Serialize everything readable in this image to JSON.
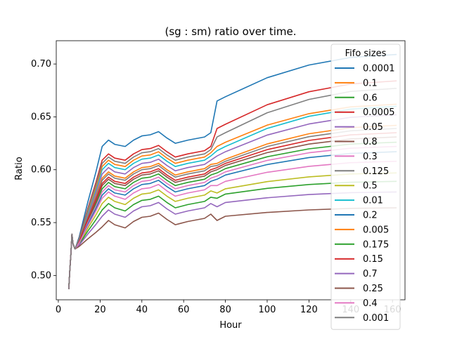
{
  "chart_data": {
    "type": "line",
    "title": "(sg : sm) ratio over time.",
    "xlabel": "Hour",
    "ylabel": "Ratio",
    "xlim": [
      -1,
      166
    ],
    "ylim": [
      0.477,
      0.722
    ],
    "x_ticks": [
      0,
      20,
      40,
      60,
      80,
      100,
      120,
      140,
      160
    ],
    "y_ticks": [
      0.5,
      0.55,
      0.6,
      0.65,
      0.7
    ],
    "y_tick_labels": [
      "0.50",
      "0.55",
      "0.60",
      "0.65",
      "0.70"
    ],
    "grid": false,
    "legend": {
      "title": "Fifo sizes",
      "placement": "right"
    },
    "series": [
      {
        "name": "0.0001",
        "color": "#1f77b4",
        "end": 0.709,
        "plateau": 0.669,
        "peak": 0.628,
        "dip": 0.622
      },
      {
        "name": "0.1",
        "color": "#ff7f0e",
        "end": 0.642,
        "plateau": 0.61,
        "peak": 0.598,
        "dip": 0.592
      },
      {
        "name": "0.6",
        "color": "#2ca02c",
        "end": 0.626,
        "plateau": 0.601,
        "peak": 0.588,
        "dip": 0.582
      },
      {
        "name": "0.0005",
        "color": "#d62728",
        "end": 0.684,
        "plateau": 0.643,
        "peak": 0.615,
        "dip": 0.609
      },
      {
        "name": "0.05",
        "color": "#9467bd",
        "end": 0.652,
        "plateau": 0.617,
        "peak": 0.602,
        "dip": 0.596
      },
      {
        "name": "0.8",
        "color": "#8c564b",
        "end": 0.631,
        "plateau": 0.604,
        "peak": 0.591,
        "dip": 0.585
      },
      {
        "name": "0.3",
        "color": "#e377c2",
        "end": 0.622,
        "plateau": 0.598,
        "peak": 0.585,
        "dip": 0.579
      },
      {
        "name": "0.125",
        "color": "#7f7f7f",
        "end": 0.639,
        "plateau": 0.608,
        "peak": 0.596,
        "dip": 0.59
      },
      {
        "name": "0.5",
        "color": "#bcbd22",
        "end": 0.597,
        "plateau": 0.582,
        "peak": 0.574,
        "dip": 0.567
      },
      {
        "name": "0.01",
        "color": "#17becf",
        "end": 0.66,
        "plateau": 0.622,
        "peak": 0.606,
        "dip": 0.6
      },
      {
        "name": "0.2",
        "color": "#1f77b4",
        "end": 0.617,
        "plateau": 0.595,
        "peak": 0.582,
        "dip": 0.576
      },
      {
        "name": "0.005",
        "color": "#ff7f0e",
        "end": 0.662,
        "plateau": 0.626,
        "peak": 0.609,
        "dip": 0.603
      },
      {
        "name": "0.175",
        "color": "#2ca02c",
        "end": 0.589,
        "plateau": 0.577,
        "peak": 0.568,
        "dip": 0.561
      },
      {
        "name": "0.15",
        "color": "#d62728",
        "end": 0.635,
        "plateau": 0.606,
        "peak": 0.593,
        "dip": 0.587
      },
      {
        "name": "0.7",
        "color": "#9467bd",
        "end": 0.579,
        "plateau": 0.569,
        "peak": 0.562,
        "dip": 0.555
      },
      {
        "name": "0.25",
        "color": "#8c564b",
        "end": 0.564,
        "plateau": 0.556,
        "peak": 0.552,
        "dip": 0.545
      },
      {
        "name": "0.4",
        "color": "#e377c2",
        "end": 0.608,
        "plateau": 0.589,
        "peak": 0.579,
        "dip": 0.572
      },
      {
        "name": "0.001",
        "color": "#7f7f7f",
        "end": 0.677,
        "plateau": 0.635,
        "peak": 0.612,
        "dip": 0.606
      }
    ]
  }
}
